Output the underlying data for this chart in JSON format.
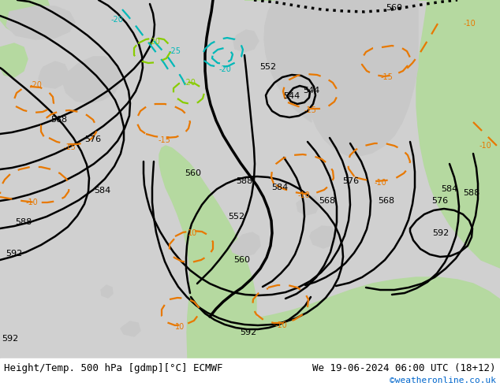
{
  "title_left": "Height/Temp. 500 hPa [gdmp][°C] ECMWF",
  "title_right": "We 19-06-2024 06:00 UTC (18+12)",
  "credit": "©weatheronline.co.uk",
  "credit_color": "#0066cc",
  "bg_gray": "#c8c8c8",
  "bg_green": "#b5d9a0",
  "bg_sea": "#d0d0d0",
  "black": "#000000",
  "orange": "#e87800",
  "cyan": "#00b8b8",
  "green_t": "#88cc00",
  "title_fontsize": 9,
  "credit_fontsize": 8,
  "label_fontsize": 7.5
}
